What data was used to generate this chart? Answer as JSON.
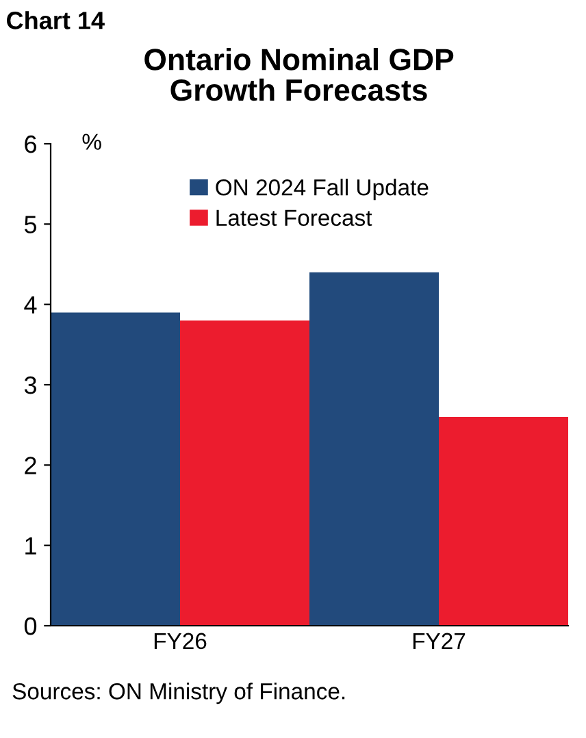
{
  "chart_data": {
    "type": "bar",
    "title": "Ontario Nominal GDP\nGrowth Forecasts",
    "subtitle": "Chart 14",
    "ylabel": "%",
    "categories": [
      "FY26",
      "FY27"
    ],
    "series": [
      {
        "name": "ON 2024 Fall Update",
        "color": "#224a7c",
        "values": [
          3.9,
          4.4
        ]
      },
      {
        "name": "Latest Forecast",
        "color": "#ec1c2e",
        "values": [
          3.8,
          2.6
        ]
      }
    ],
    "ylim": [
      0,
      6
    ],
    "yticks": [
      0,
      1,
      2,
      3,
      4,
      5,
      6
    ],
    "grid": false,
    "legend": "top",
    "annotations": [
      "Sources: ON Ministry of Finance."
    ]
  }
}
